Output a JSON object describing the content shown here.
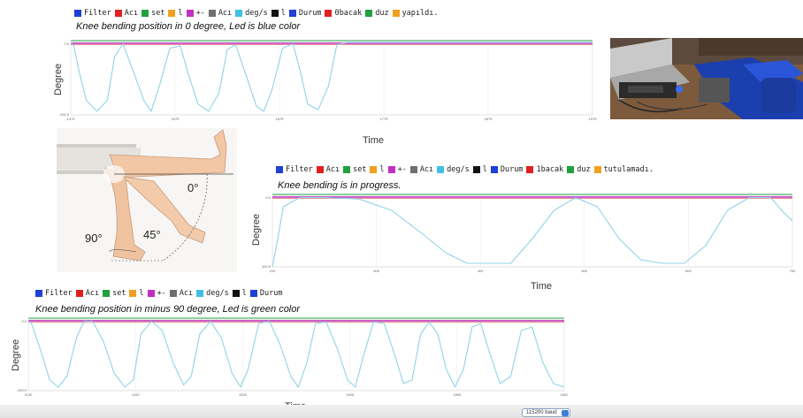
{
  "legends": {
    "top": [
      {
        "label": "Filter",
        "color": "#1f3fd6"
      },
      {
        "label": "Acı",
        "color": "#e02020"
      },
      {
        "label": "set",
        "color": "#20a040"
      },
      {
        "label": "l",
        "color": "#f0a020"
      },
      {
        "label": "+-",
        "color": "#c030c0"
      },
      {
        "label": "Acı",
        "color": "#707070"
      },
      {
        "label": "deg/s",
        "color": "#40c0e0"
      },
      {
        "label": "l",
        "color": "#111111"
      },
      {
        "label": "Durum",
        "color": "#1f3fd6"
      },
      {
        "label": "0bacak",
        "color": "#e02020"
      },
      {
        "label": "duz",
        "color": "#20a040"
      },
      {
        "label": "yapıldı.",
        "color": "#f0a020"
      }
    ],
    "middle": [
      {
        "label": "Filter",
        "color": "#1f3fd6"
      },
      {
        "label": "Acı",
        "color": "#e02020"
      },
      {
        "label": "set",
        "color": "#20a040"
      },
      {
        "label": "l",
        "color": "#f0a020"
      },
      {
        "label": "+-",
        "color": "#c030c0"
      },
      {
        "label": "Acı",
        "color": "#707070"
      },
      {
        "label": "deg/s",
        "color": "#40c0e0"
      },
      {
        "label": "l",
        "color": "#111111"
      },
      {
        "label": "Durum",
        "color": "#1f3fd6"
      },
      {
        "label": "1bacak",
        "color": "#e02020"
      },
      {
        "label": "duz",
        "color": "#20a040"
      },
      {
        "label": "tutulamadı.",
        "color": "#f0a020"
      }
    ],
    "bottom": [
      {
        "label": "Filter",
        "color": "#1f3fd6"
      },
      {
        "label": "Acı",
        "color": "#e02020"
      },
      {
        "label": "set",
        "color": "#20a040"
      },
      {
        "label": "l",
        "color": "#f0a020"
      },
      {
        "label": "+-",
        "color": "#c030c0"
      },
      {
        "label": "Acı",
        "color": "#707070"
      },
      {
        "label": "deg/s",
        "color": "#40c0e0"
      },
      {
        "label": "l",
        "color": "#111111"
      },
      {
        "label": "Durum",
        "color": "#1f3fd6"
      }
    ]
  },
  "captions": {
    "top": "Knee bending position in 0 degree, Led is blue color",
    "middle": "Knee bending is in progress.",
    "bottom": "Knee bending position in minus 90 degree, Led is green color"
  },
  "axis_titles": {
    "x": "Time",
    "y": "Degree"
  },
  "knee_angles": [
    "0°",
    "45°",
    "90°"
  ],
  "baud": "115200 baud",
  "colors": {
    "signal": "#8fd3e6",
    "setpoint": "#20a040",
    "reference": "#c030c0",
    "limit": "#e02020"
  },
  "chart_data": [
    {
      "type": "line",
      "ylim": [
        -100,
        0
      ],
      "yticks": [
        "0.0",
        "-100.0"
      ],
      "xticks": [
        "1475",
        "1575",
        "1675",
        "1775",
        "1875",
        "1975"
      ],
      "xlim": [
        1475,
        1975
      ],
      "series": [
        {
          "x": [
            1475,
            1478,
            1483,
            1490,
            1500,
            1510,
            1517,
            1525,
            1535,
            1545,
            1552,
            1560,
            1570,
            1580,
            1588,
            1597,
            1607,
            1617,
            1625,
            1633,
            1643,
            1653,
            1660,
            1668,
            1678,
            1688,
            1695,
            1702,
            1712,
            1722,
            1730,
            1740,
            1760,
            1800,
            1850,
            1900,
            1975
          ],
          "y": [
            0,
            -5,
            -40,
            -80,
            -95,
            -80,
            -20,
            -2,
            -40,
            -80,
            -95,
            -60,
            -8,
            -5,
            -45,
            -85,
            -95,
            -70,
            -10,
            -3,
            -45,
            -88,
            -95,
            -65,
            -8,
            -2,
            -40,
            -85,
            -93,
            -60,
            -3,
            0,
            0,
            0,
            0,
            0,
            0
          ]
        }
      ]
    },
    {
      "type": "line",
      "ylim": [
        -100,
        0
      ],
      "yticks": [
        "0.0",
        "-100.0"
      ],
      "xticks": [
        "220",
        "300",
        "400",
        "500",
        "600",
        "700"
      ],
      "xlim": [
        220,
        700
      ],
      "series": [
        {
          "x": [
            220,
            225,
            230,
            245,
            270,
            300,
            330,
            360,
            380,
            400,
            420,
            440,
            460,
            480,
            500,
            520,
            540,
            560,
            580,
            600,
            620,
            640,
            660,
            680,
            690,
            700
          ],
          "y": [
            -100,
            -60,
            -15,
            -2,
            -2,
            -4,
            -20,
            -55,
            -80,
            -95,
            -95,
            -95,
            -60,
            -20,
            -2,
            -15,
            -60,
            -90,
            -95,
            -95,
            -70,
            -20,
            -2,
            -2,
            -20,
            -35
          ]
        }
      ]
    },
    {
      "type": "line",
      "ylim": [
        -100,
        0
      ],
      "yticks": [
        "0.0",
        "-100.0"
      ],
      "xticks": [
        "1100",
        "1200",
        "1300",
        "1400",
        "1500",
        "1600"
      ],
      "xlim": [
        1100,
        1600
      ],
      "series": [
        {
          "x": [
            1100,
            1103,
            1112,
            1120,
            1128,
            1136,
            1145,
            1152,
            1160,
            1170,
            1180,
            1190,
            1198,
            1205,
            1215,
            1225,
            1235,
            1245,
            1252,
            1260,
            1270,
            1280,
            1290,
            1298,
            1305,
            1315,
            1325,
            1335,
            1345,
            1352,
            1360,
            1368,
            1378,
            1388,
            1398,
            1405,
            1412,
            1422,
            1432,
            1442,
            1450,
            1458,
            1466,
            1474,
            1482,
            1490,
            1498,
            1506,
            1514,
            1522,
            1530,
            1540,
            1550,
            1560,
            1570,
            1580,
            1590,
            1600
          ],
          "y": [
            -2,
            -5,
            -45,
            -85,
            -95,
            -80,
            -25,
            -2,
            -2,
            -30,
            -75,
            -95,
            -85,
            -20,
            -2,
            -15,
            -60,
            -92,
            -80,
            -20,
            -2,
            -25,
            -75,
            -95,
            -70,
            -5,
            -2,
            -35,
            -80,
            -95,
            -60,
            -5,
            -3,
            -40,
            -85,
            -95,
            -55,
            -3,
            -5,
            -50,
            -90,
            -85,
            -20,
            -3,
            -20,
            -70,
            -95,
            -70,
            -10,
            -5,
            -45,
            -90,
            -80,
            -15,
            -10,
            -60,
            -90,
            -95
          ]
        }
      ]
    }
  ]
}
